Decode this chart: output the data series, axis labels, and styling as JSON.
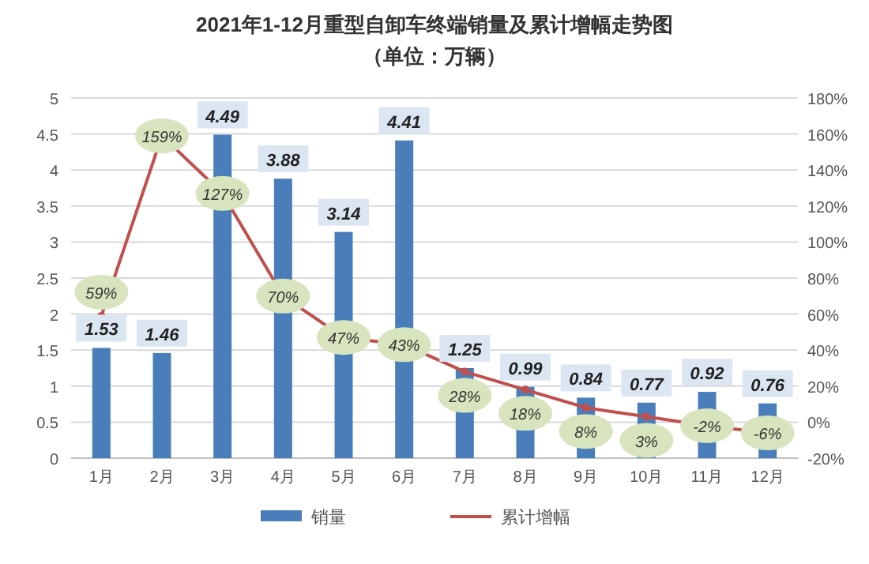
{
  "chart_data": {
    "type": "bar",
    "title": "2021年1-12月重型自卸车终端销量及累计增幅走势图",
    "subtitle": "（单位：万辆）",
    "categories": [
      "1月",
      "2月",
      "3月",
      "4月",
      "5月",
      "6月",
      "7月",
      "8月",
      "9月",
      "10月",
      "11月",
      "12月"
    ],
    "series": [
      {
        "name": "销量",
        "color": "#4a7ebb",
        "values": [
          1.53,
          1.46,
          4.49,
          3.88,
          3.14,
          4.41,
          1.25,
          0.99,
          0.84,
          0.77,
          0.92,
          0.76
        ],
        "value_labels": [
          "1.53",
          "1.46",
          "4.49",
          "3.88",
          "3.14",
          "4.41",
          "1.25",
          "0.99",
          "0.84",
          "0.77",
          "0.92",
          "0.76"
        ]
      },
      {
        "name": "累计增幅",
        "type": "line",
        "axis": "y2",
        "marker": "circle",
        "color": "#c0504d",
        "values": [
          59,
          159,
          127,
          70,
          47,
          43,
          28,
          18,
          8,
          3,
          -2,
          -6
        ],
        "value_labels": [
          "59%",
          "159%",
          "127%",
          "70%",
          "47%",
          "43%",
          "28%",
          "18%",
          "8%",
          "3%",
          "-2%",
          "-6%"
        ]
      }
    ],
    "ylim": [
      0,
      5
    ],
    "yticks": [
      0,
      0.5,
      1,
      1.5,
      2,
      2.5,
      3,
      3.5,
      4,
      4.5,
      5
    ],
    "y2lim": [
      -20,
      180
    ],
    "y2ticks": [
      {
        "value": -20,
        "label": "-20%"
      },
      {
        "value": 0,
        "label": "0%"
      },
      {
        "value": 20,
        "label": "20%"
      },
      {
        "value": 40,
        "label": "40%"
      },
      {
        "value": 60,
        "label": "60%"
      },
      {
        "value": 80,
        "label": "80%"
      },
      {
        "value": 100,
        "label": "100%"
      },
      {
        "value": 120,
        "label": "120%"
      },
      {
        "value": 140,
        "label": "140%"
      },
      {
        "value": 160,
        "label": "160%"
      },
      {
        "value": 180,
        "label": "180%"
      }
    ],
    "grid": "y",
    "legend": "bottom"
  }
}
